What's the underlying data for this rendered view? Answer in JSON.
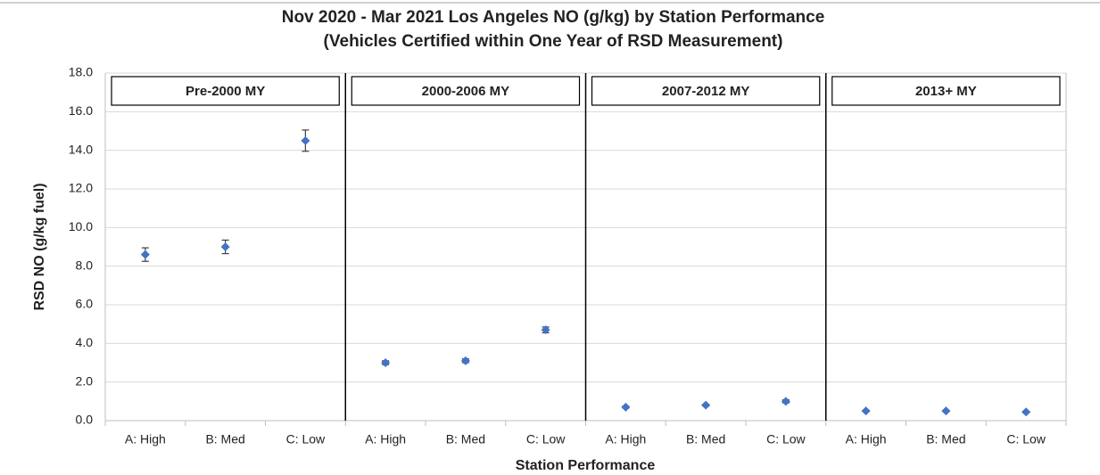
{
  "chart_data": {
    "type": "scatter",
    "title": "Nov 2020 - Mar 2021 Los Angeles NO (g/kg) by Station Performance",
    "subtitle": "(Vehicles Certified within One Year of RSD Measurement)",
    "x_label": "Station Performance",
    "y_label": "RSD NO (g/kg fuel)",
    "panels": [
      "Pre-2000 MY",
      "2000-2006 MY",
      "2007-2012 MY",
      "2013+ MY"
    ],
    "categories": [
      "A: High",
      "B: Med",
      "C: Low",
      "A: High",
      "B: Med",
      "C: Low",
      "A: High",
      "B: Med",
      "C: Low",
      "A: High",
      "B: Med",
      "C: Low"
    ],
    "values": [
      8.6,
      9.0,
      14.5,
      3.0,
      3.1,
      4.7,
      0.7,
      0.8,
      1.0,
      0.5,
      0.5,
      0.45
    ],
    "errors": [
      0.35,
      0.35,
      0.55,
      0.1,
      0.1,
      0.15,
      0.05,
      0.05,
      0.08,
      0.04,
      0.04,
      0.04
    ],
    "color": "#4472c4",
    "ylim": [
      0,
      18
    ],
    "yticks": [
      {
        "value": 0,
        "label": "0.0"
      },
      {
        "value": 2,
        "label": "2.0"
      },
      {
        "value": 4,
        "label": "4.0"
      },
      {
        "value": 6,
        "label": "6.0"
      },
      {
        "value": 8,
        "label": "8.0"
      },
      {
        "value": 10,
        "label": "10.0"
      },
      {
        "value": 12,
        "label": "12.0"
      },
      {
        "value": 14,
        "label": "14.0"
      },
      {
        "value": 16,
        "label": "16.0"
      },
      {
        "value": 18,
        "label": "18.0"
      }
    ],
    "grid": true
  }
}
